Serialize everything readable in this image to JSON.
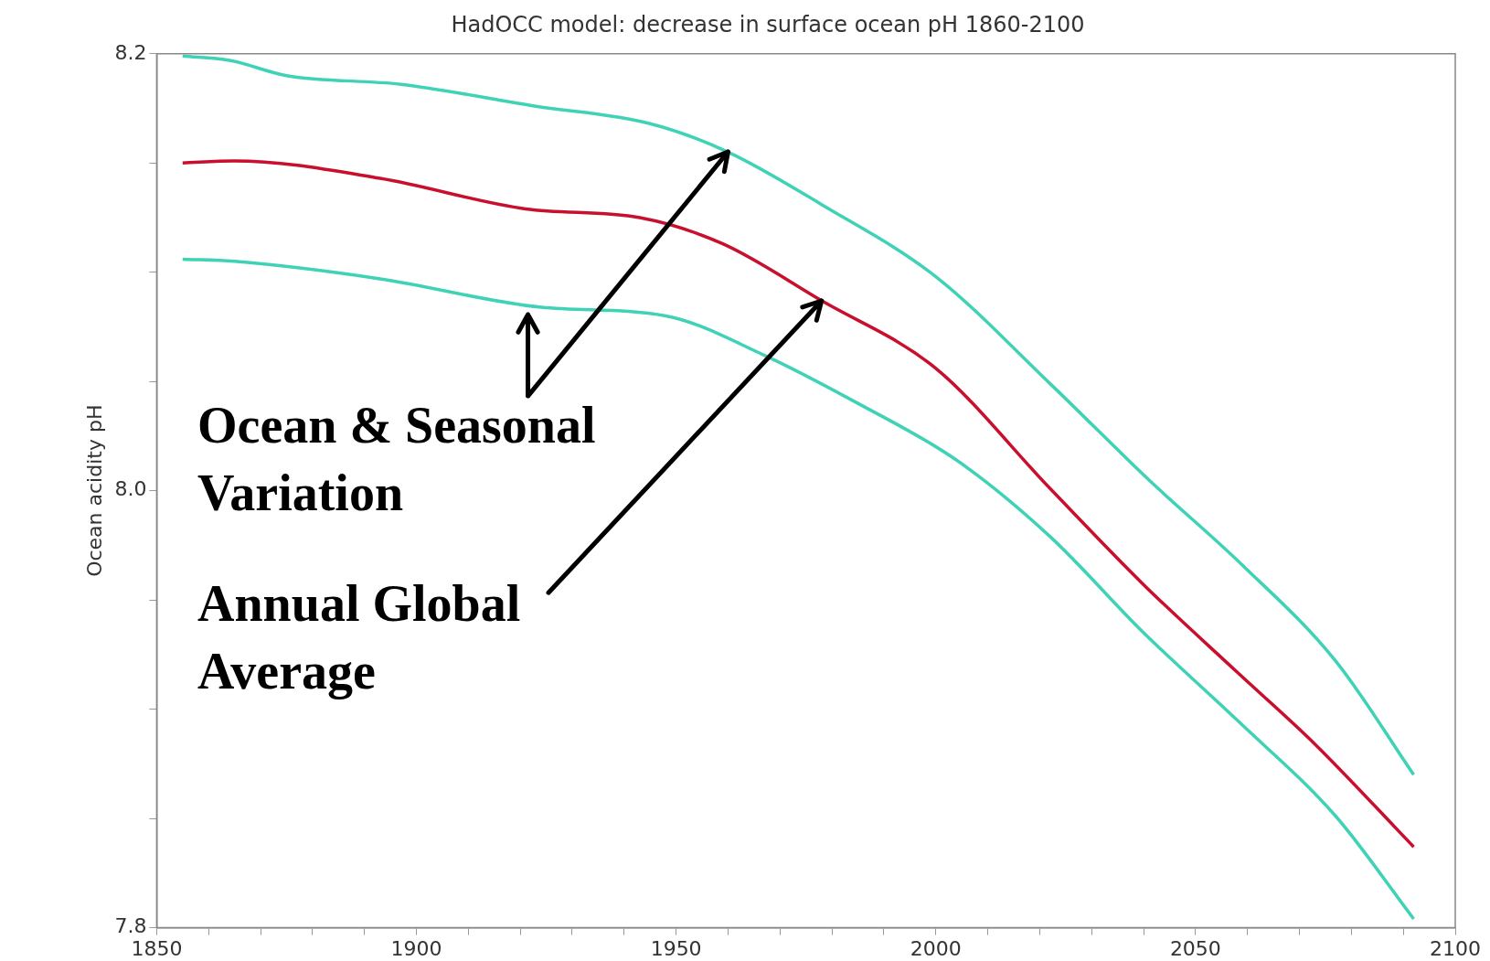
{
  "chart_data": {
    "type": "line",
    "title": "HadOCC model: decrease in surface ocean pH 1860-2100",
    "ylabel": "Ocean acidity pH",
    "xlim": [
      1850,
      2100
    ],
    "ylim": [
      7.8,
      8.2
    ],
    "xticks": [
      1850,
      {
        "value": 1860,
        "label": null
      },
      {
        "value": 1870,
        "label": null
      },
      {
        "value": 1880,
        "label": null
      },
      {
        "value": 1890,
        "label": null
      },
      1900,
      {
        "value": 1910,
        "label": null
      },
      {
        "value": 1920,
        "label": null
      },
      {
        "value": 1930,
        "label": null
      },
      {
        "value": 1940,
        "label": null
      },
      1950,
      {
        "value": 1960,
        "label": null
      },
      {
        "value": 1970,
        "label": null
      },
      {
        "value": 1980,
        "label": null
      },
      {
        "value": 1990,
        "label": null
      },
      2000,
      {
        "value": 2010,
        "label": null
      },
      {
        "value": 2020,
        "label": null
      },
      {
        "value": 2030,
        "label": null
      },
      {
        "value": 2040,
        "label": null
      },
      2050,
      {
        "value": 2060,
        "label": null
      },
      {
        "value": 2070,
        "label": null
      },
      {
        "value": 2080,
        "label": null
      },
      {
        "value": 2090,
        "label": null
      },
      2100
    ],
    "yticks": [
      7.8,
      {
        "value": 7.85,
        "label": null
      },
      {
        "value": 7.9,
        "label": null
      },
      {
        "value": 7.95,
        "label": null
      },
      {
        "value": 8,
        "label": "8.0"
      },
      {
        "value": 8.05,
        "label": null
      },
      {
        "value": 8.1,
        "label": null
      },
      {
        "value": 8.15,
        "label": null
      },
      8.2
    ],
    "grid": false,
    "legend": false,
    "marker": "none",
    "line_style": "solid",
    "annotations": [
      {
        "text": "Ocean & Seasonal Variation",
        "x": 1960,
        "y": 8.155
      },
      {
        "text": "Annual Global Average",
        "x": 1978,
        "y": 8.087
      }
    ],
    "series": [
      {
        "color": "#40d2b6",
        "x": [
          1855,
          1864,
          1875,
          1897,
          1923,
          1945,
          1960,
          1978,
          2000,
          2022,
          2041,
          2059,
          2077,
          2092
        ],
        "values": [
          8.199,
          8.197,
          8.19,
          8.186,
          8.176,
          8.168,
          8.155,
          8.131,
          8.098,
          8.049,
          8.005,
          7.966,
          7.922,
          7.87
        ]
      },
      {
        "color": "#c8102e",
        "x": [
          1855,
          1865,
          1893,
          1921,
          1943,
          1959,
          1978,
          2000,
          2022,
          2040,
          2058,
          2073,
          2092
        ],
        "values": [
          8.15,
          8.151,
          8.143,
          8.129,
          8.125,
          8.113,
          8.087,
          8.056,
          8.001,
          7.957,
          7.917,
          7.884,
          7.837
        ]
      },
      {
        "color": "#40d2b6",
        "x": [
          1855,
          1865,
          1893,
          1924,
          1948,
          1967,
          1985,
          2004,
          2022,
          2040,
          2058,
          2077,
          2092
        ],
        "values": [
          8.106,
          8.105,
          8.097,
          8.084,
          8.08,
          8.062,
          8.04,
          8.014,
          7.979,
          7.935,
          7.895,
          7.851,
          7.804
        ]
      }
    ]
  }
}
